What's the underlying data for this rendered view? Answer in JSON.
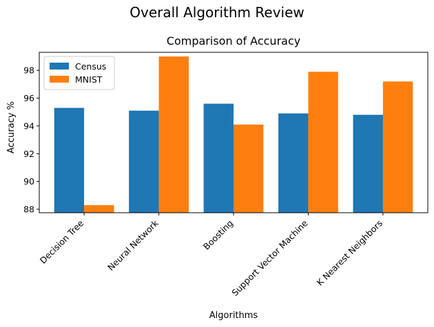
{
  "figure": {
    "suptitle": "Overall Algorithm Review"
  },
  "chart_data": {
    "type": "bar",
    "title": "Comparison of Accuracy",
    "xlabel": "Algorithms",
    "ylabel": "Accuracy %",
    "categories": [
      "Decision Tree",
      "Neural Network",
      "Boosting",
      "Support Vector Machine",
      "K Nearest Neighbors"
    ],
    "series": [
      {
        "name": "Census",
        "color": "#1f77b4",
        "values": [
          95.3,
          95.1,
          95.6,
          94.9,
          94.8
        ]
      },
      {
        "name": "MNIST",
        "color": "#ff7f0e",
        "values": [
          88.3,
          99.0,
          94.1,
          97.9,
          97.2
        ]
      }
    ],
    "yticks": [
      88,
      90,
      92,
      94,
      96,
      98
    ],
    "ylim": [
      87.75,
      99.3
    ],
    "grid": false,
    "legend": "top-left"
  }
}
